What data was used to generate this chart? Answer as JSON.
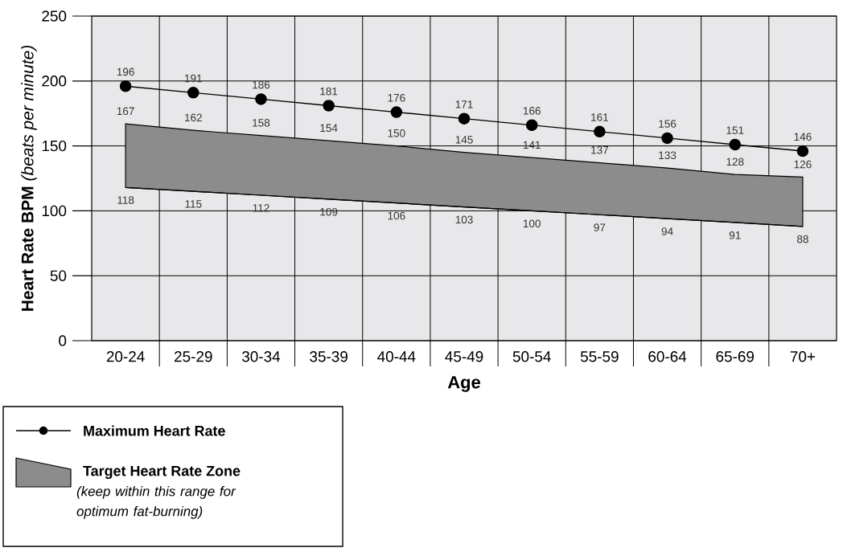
{
  "chart_data": {
    "type": "line",
    "categories": [
      "20-24",
      "25-29",
      "30-34",
      "35-39",
      "40-44",
      "45-49",
      "50-54",
      "55-59",
      "60-64",
      "65-69",
      "70+"
    ],
    "series": [
      {
        "name": "Maximum Heart Rate",
        "color": "#000000",
        "marker": "circle",
        "values": [
          196,
          191,
          186,
          181,
          176,
          171,
          166,
          161,
          156,
          151,
          146
        ]
      },
      {
        "name": "Target Heart Rate Zone",
        "type": "area",
        "color": "#8c8c8c",
        "values": [
          167,
          162,
          158,
          154,
          150,
          145,
          141,
          137,
          133,
          128,
          126
        ]
      },
      {
        "type": "line",
        "color": "#000000",
        "values": [
          118,
          115,
          112,
          109,
          106,
          103,
          100,
          97,
          94,
          91,
          88
        ]
      }
    ],
    "ylim": [
      0,
      250
    ],
    "yticks": [
      0,
      50,
      100,
      150,
      200,
      250
    ],
    "grid": true,
    "data_labels": true,
    "legend": "bottom left",
    "xlabel": "Age",
    "ylabel": "**Heart Rate BPM** *(beats per minute)*",
    "annotations": [
      "(keep within this range for optimum fat-burning)"
    ]
  }
}
